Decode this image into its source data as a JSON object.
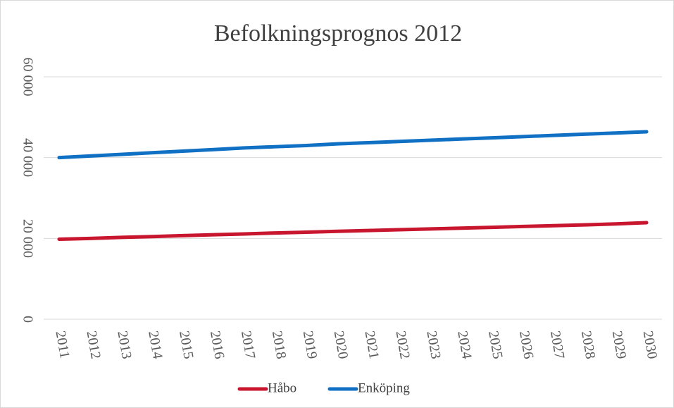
{
  "chart_data": {
    "type": "line",
    "title": "Befolkningsprognos 2012",
    "categories": [
      "2011",
      "2012",
      "2013",
      "2014",
      "2015",
      "2016",
      "2017",
      "2018",
      "2019",
      "2020",
      "2021",
      "2022",
      "2023",
      "2024",
      "2025",
      "2026",
      "2027",
      "2028",
      "2029",
      "2030"
    ],
    "series": [
      {
        "name": "Håbo",
        "color": "#c9162f",
        "values": [
          19800,
          20000,
          20250,
          20450,
          20700,
          20900,
          21100,
          21350,
          21550,
          21750,
          21950,
          22150,
          22350,
          22550,
          22750,
          22950,
          23150,
          23350,
          23600,
          23900
        ]
      },
      {
        "name": "Enköping",
        "color": "#1070c4",
        "values": [
          40000,
          40400,
          40800,
          41200,
          41600,
          42000,
          42400,
          42700,
          43000,
          43400,
          43700,
          44000,
          44300,
          44600,
          44900,
          45200,
          45500,
          45800,
          46100,
          46400
        ]
      }
    ],
    "ylim": [
      0,
      60000
    ],
    "yticks": [
      0,
      {
        "value": 20000,
        "label": "20 000"
      },
      {
        "value": 40000,
        "label": "40 000"
      },
      {
        "value": 60000,
        "label": "60 000"
      }
    ],
    "grid": true,
    "legend": "bottom"
  }
}
